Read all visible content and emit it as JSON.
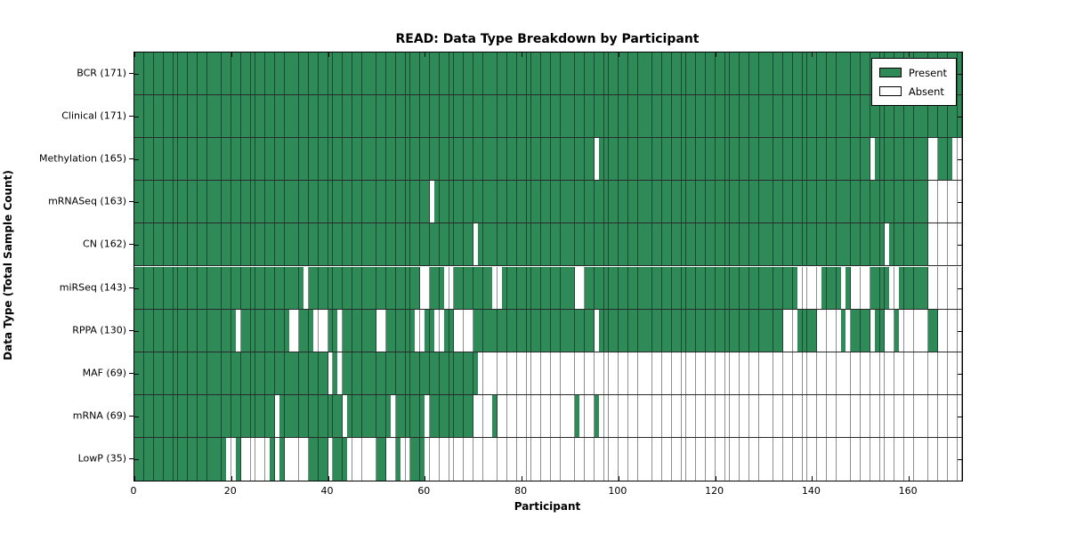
{
  "title": "READ: Data Type Breakdown by Participant",
  "xlabel": "Participant",
  "ylabel": "Data Type (Total Sample Count)",
  "legend": {
    "present_label": "Present",
    "absent_label": "Absent"
  },
  "colors": {
    "present_fill": "#2e8b57",
    "present_edge": "#1b4d33",
    "absent_fill": "#ffffff",
    "absent_edge": "#8f8f8f",
    "row_divider": "#2a2a2a",
    "spine": "#000000"
  },
  "chart_data": {
    "type": "heatmap",
    "title": "READ: Data Type Breakdown by Participant",
    "xlabel": "Participant",
    "ylabel": "Data Type (Total Sample Count)",
    "legend_entries": [
      "Present",
      "Absent"
    ],
    "legend_position": "upper right",
    "n_participants": 171,
    "x_ticks": [
      0,
      20,
      40,
      60,
      80,
      100,
      120,
      140,
      160
    ],
    "x_range": [
      0,
      171
    ],
    "value_encoding": {
      "present": "green",
      "absent": "white"
    },
    "rows": [
      {
        "label": "BCR (171)",
        "name": "BCR",
        "present_count": 171,
        "absent_ranges": []
      },
      {
        "label": "Clinical (171)",
        "name": "Clinical",
        "present_count": 171,
        "absent_ranges": []
      },
      {
        "label": "Methylation (165)",
        "name": "Methylation",
        "present_count": 165,
        "absent_ranges": [
          [
            95,
            95
          ],
          [
            152,
            152
          ],
          [
            164,
            165
          ],
          [
            169,
            170
          ]
        ]
      },
      {
        "label": "mRNASeq (163)",
        "name": "mRNASeq",
        "present_count": 163,
        "absent_ranges": [
          [
            61,
            61
          ],
          [
            164,
            170
          ]
        ]
      },
      {
        "label": "CN (162)",
        "name": "CN",
        "present_count": 162,
        "absent_ranges": [
          [
            70,
            70
          ],
          [
            155,
            155
          ],
          [
            164,
            170
          ]
        ]
      },
      {
        "label": "miRSeq (143)",
        "name": "miRSeq",
        "present_count": 143,
        "absent_ranges": [
          [
            35,
            35
          ],
          [
            59,
            60
          ],
          [
            64,
            65
          ],
          [
            74,
            75
          ],
          [
            91,
            92
          ],
          [
            137,
            141
          ],
          [
            146,
            146
          ],
          [
            148,
            151
          ],
          [
            156,
            157
          ],
          [
            164,
            170
          ]
        ]
      },
      {
        "label": "RPPA (130)",
        "name": "RPPA",
        "present_count": 130,
        "absent_ranges": [
          [
            21,
            21
          ],
          [
            32,
            33
          ],
          [
            37,
            39
          ],
          [
            42,
            42
          ],
          [
            50,
            51
          ],
          [
            58,
            59
          ],
          [
            62,
            63
          ],
          [
            66,
            69
          ],
          [
            95,
            95
          ],
          [
            134,
            136
          ],
          [
            141,
            145
          ],
          [
            147,
            147
          ],
          [
            152,
            152
          ],
          [
            155,
            156
          ],
          [
            158,
            163
          ],
          [
            166,
            170
          ]
        ]
      },
      {
        "label": "MAF (69)",
        "name": "MAF",
        "present_count": 69,
        "absent_ranges": [
          [
            40,
            40
          ],
          [
            42,
            42
          ],
          [
            71,
            170
          ]
        ]
      },
      {
        "label": "mRNA (69)",
        "name": "mRNA",
        "present_count": 69,
        "absent_ranges": [
          [
            29,
            29
          ],
          [
            43,
            43
          ],
          [
            53,
            53
          ],
          [
            60,
            60
          ],
          [
            70,
            73
          ],
          [
            75,
            90
          ],
          [
            92,
            94
          ],
          [
            96,
            170
          ]
        ]
      },
      {
        "label": "LowP (35)",
        "name": "LowP",
        "present_count": 35,
        "absent_ranges": [
          [
            19,
            20
          ],
          [
            22,
            27
          ],
          [
            29,
            29
          ],
          [
            31,
            35
          ],
          [
            40,
            40
          ],
          [
            44,
            49
          ],
          [
            52,
            53
          ],
          [
            55,
            56
          ],
          [
            60,
            170
          ]
        ]
      }
    ]
  }
}
